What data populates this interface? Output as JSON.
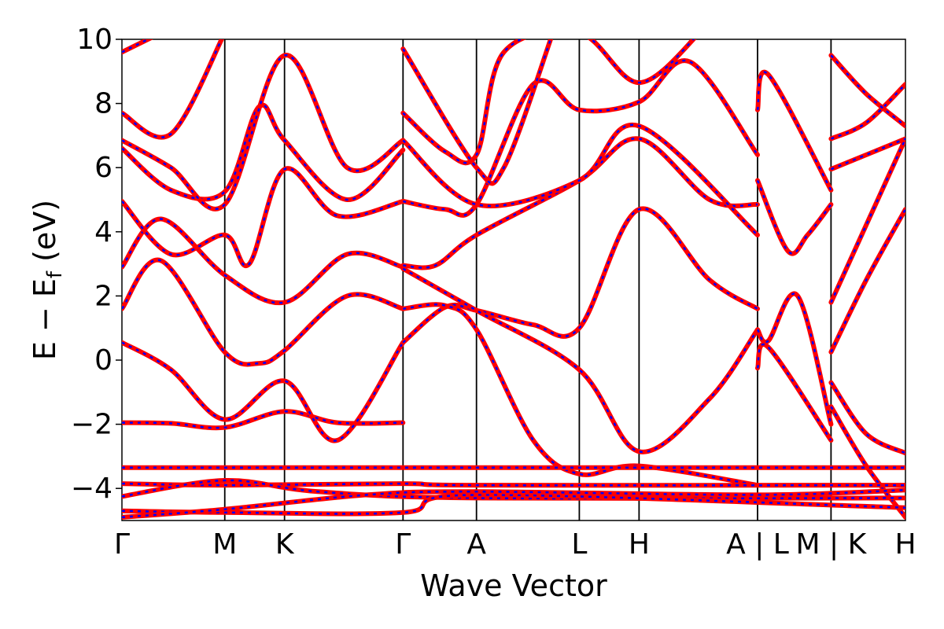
{
  "chart_data": {
    "type": "line",
    "title": "",
    "xlabel": "Wave Vector",
    "ylabel_main": "E − E",
    "ylabel_sub": "f",
    "ylabel_unit": " (eV)",
    "ylim": [
      -5,
      10
    ],
    "yticks": [
      {
        "value": -4,
        "label": "−4"
      },
      {
        "value": -2,
        "label": "−2"
      },
      {
        "value": 0,
        "label": "0"
      },
      {
        "value": 2,
        "label": "2"
      },
      {
        "value": 4,
        "label": "4"
      },
      {
        "value": 6,
        "label": "6"
      },
      {
        "value": 8,
        "label": "8"
      },
      {
        "value": 10,
        "label": "10"
      }
    ],
    "xlim": [
      0,
      8.0
    ],
    "kpoints": [
      {
        "label": "Γ",
        "x": 0.0
      },
      {
        "label": "M",
        "x": 1.05
      },
      {
        "label": "K",
        "x": 1.66
      },
      {
        "label": "Γ",
        "x": 2.87
      },
      {
        "label": "A",
        "x": 3.62
      },
      {
        "label": "L",
        "x": 4.67
      },
      {
        "label": "H",
        "x": 5.28
      },
      {
        "label": "A | L",
        "x": 6.49
      },
      {
        "label": "M | K",
        "x": 7.24
      },
      {
        "label": "H",
        "x": 8.0
      }
    ],
    "colors": {
      "line_a": "#ff0000",
      "line_b": "#0000ff",
      "kpath_line": "#000000"
    },
    "grid": false,
    "legend": "none",
    "series": [
      {
        "points": [
          [
            0,
            -1.95
          ],
          [
            0.5,
            -1.97
          ],
          [
            1.05,
            -2.1
          ],
          [
            1.66,
            -1.6
          ],
          [
            2.2,
            -1.95
          ],
          [
            2.87,
            -1.95
          ]
        ]
      },
      {
        "points": [
          [
            0,
            0.55
          ],
          [
            0.5,
            -0.3
          ],
          [
            1.05,
            -1.85
          ],
          [
            1.66,
            -0.65
          ],
          [
            2.2,
            -2.5
          ],
          [
            2.87,
            0.55
          ]
        ]
      },
      {
        "points": [
          [
            0,
            1.6
          ],
          [
            0.4,
            3.1
          ],
          [
            1.05,
            0.25
          ],
          [
            1.4,
            -0.1
          ],
          [
            1.66,
            0.3
          ],
          [
            2.3,
            2.0
          ],
          [
            2.87,
            1.6
          ]
        ]
      },
      {
        "points": [
          [
            0,
            2.9
          ],
          [
            0.4,
            4.4
          ],
          [
            1.05,
            2.65
          ],
          [
            1.66,
            1.8
          ],
          [
            2.3,
            3.3
          ],
          [
            2.87,
            2.9
          ]
        ]
      },
      {
        "points": [
          [
            0,
            4.95
          ],
          [
            0.5,
            3.3
          ],
          [
            1.05,
            3.9
          ],
          [
            1.3,
            3.0
          ],
          [
            1.66,
            5.95
          ],
          [
            2.2,
            4.5
          ],
          [
            2.87,
            4.95
          ]
        ]
      },
      {
        "points": [
          [
            0,
            6.6
          ],
          [
            0.5,
            5.3
          ],
          [
            1.05,
            5.25
          ],
          [
            1.4,
            7.9
          ],
          [
            1.66,
            6.85
          ],
          [
            2.3,
            5.0
          ],
          [
            2.87,
            6.55
          ]
        ]
      },
      {
        "points": [
          [
            0,
            6.85
          ],
          [
            0.5,
            6.0
          ],
          [
            1.05,
            4.85
          ],
          [
            1.66,
            9.5
          ],
          [
            2.3,
            6.0
          ],
          [
            2.87,
            6.85
          ]
        ]
      },
      {
        "points": [
          [
            0,
            7.7
          ],
          [
            0.5,
            7.05
          ],
          [
            1.05,
            10.2
          ]
        ]
      },
      {
        "points": [
          [
            0,
            9.6
          ],
          [
            0.4,
            10.2
          ]
        ]
      },
      {
        "points": [
          [
            2.87,
            0.55
          ],
          [
            3.3,
            1.65
          ],
          [
            3.62,
            1.55
          ],
          [
            4.2,
            1.1
          ],
          [
            4.67,
            1.0
          ],
          [
            5.28,
            4.7
          ],
          [
            6.0,
            2.5
          ],
          [
            6.49,
            1.6
          ]
        ]
      },
      {
        "points": [
          [
            2.87,
            1.6
          ],
          [
            3.3,
            1.7
          ],
          [
            3.62,
            0.95
          ],
          [
            4.2,
            -2.5
          ],
          [
            4.67,
            -3.55
          ],
          [
            5.28,
            -3.3
          ],
          [
            6.49,
            -3.9
          ]
        ]
      },
      {
        "points": [
          [
            2.87,
            2.95
          ],
          [
            3.2,
            2.95
          ],
          [
            3.62,
            3.9
          ],
          [
            4.67,
            5.6
          ],
          [
            5.28,
            6.9
          ],
          [
            6.0,
            5.0
          ],
          [
            6.49,
            4.85
          ]
        ]
      },
      {
        "points": [
          [
            2.87,
            2.85
          ],
          [
            3.62,
            1.55
          ],
          [
            4.67,
            -0.3
          ],
          [
            5.28,
            -2.85
          ],
          [
            6.0,
            -1.2
          ],
          [
            6.49,
            0.95
          ]
        ]
      },
      {
        "points": [
          [
            2.87,
            4.95
          ],
          [
            3.3,
            4.7
          ],
          [
            3.62,
            4.85
          ],
          [
            4.2,
            8.6
          ],
          [
            4.67,
            7.8
          ],
          [
            5.28,
            8.05
          ],
          [
            5.8,
            9.3
          ],
          [
            6.49,
            6.4
          ]
        ]
      },
      {
        "points": [
          [
            2.87,
            6.85
          ],
          [
            3.62,
            4.85
          ],
          [
            4.67,
            5.6
          ],
          [
            5.28,
            7.3
          ],
          [
            6.49,
            3.9
          ]
        ]
      },
      {
        "points": [
          [
            2.87,
            7.7
          ],
          [
            3.3,
            6.5
          ],
          [
            3.62,
            6.4
          ],
          [
            3.9,
            9.6
          ],
          [
            4.67,
            10.2
          ],
          [
            5.28,
            8.65
          ],
          [
            5.9,
            10.2
          ]
        ]
      },
      {
        "points": [
          [
            2.87,
            9.7
          ],
          [
            3.62,
            6.0
          ],
          [
            3.9,
            6.0
          ],
          [
            4.4,
            10.2
          ]
        ]
      },
      {
        "points": [
          [
            6.49,
            0.95
          ],
          [
            6.6,
            0.6
          ],
          [
            6.9,
            2.0
          ],
          [
            7.24,
            -2.0
          ]
        ]
      },
      {
        "points": [
          [
            6.49,
            -0.25
          ],
          [
            6.6,
            0.4
          ],
          [
            7.24,
            -2.5
          ]
        ]
      },
      {
        "points": [
          [
            6.49,
            5.6
          ],
          [
            6.8,
            3.4
          ],
          [
            7.0,
            3.9
          ],
          [
            7.24,
            4.85
          ]
        ]
      },
      {
        "points": [
          [
            6.49,
            7.8
          ],
          [
            6.6,
            8.9
          ],
          [
            7.24,
            5.3
          ]
        ]
      },
      {
        "points": [
          [
            7.24,
            0.25
          ],
          [
            7.6,
            2.5
          ],
          [
            8.0,
            4.7
          ]
        ]
      },
      {
        "points": [
          [
            7.24,
            1.8
          ],
          [
            8.0,
            6.9
          ]
        ]
      },
      {
        "points": [
          [
            7.24,
            5.95
          ],
          [
            8.0,
            6.9
          ]
        ]
      },
      {
        "points": [
          [
            7.24,
            6.9
          ],
          [
            7.6,
            7.4
          ],
          [
            8.0,
            8.6
          ]
        ]
      },
      {
        "points": [
          [
            7.24,
            9.5
          ],
          [
            7.6,
            8.3
          ],
          [
            8.0,
            7.3
          ]
        ]
      },
      {
        "points": [
          [
            7.24,
            -0.7
          ],
          [
            7.6,
            -2.3
          ],
          [
            8.0,
            -2.9
          ]
        ]
      },
      {
        "points": [
          [
            7.24,
            -1.45
          ],
          [
            7.6,
            -3.3
          ],
          [
            8.0,
            -4.9
          ]
        ]
      },
      {
        "points": [
          [
            0,
            -3.35
          ],
          [
            8.0,
            -3.35
          ]
        ]
      },
      {
        "points": [
          [
            0,
            -3.85
          ],
          [
            1.05,
            -3.9
          ],
          [
            2.87,
            -3.85
          ],
          [
            3.62,
            -3.9
          ],
          [
            8.0,
            -3.9
          ]
        ]
      },
      {
        "points": [
          [
            0,
            -4.25
          ],
          [
            1.05,
            -3.75
          ],
          [
            2.0,
            -4.1
          ],
          [
            3.62,
            -4.3
          ],
          [
            8.0,
            -4.3
          ]
        ]
      },
      {
        "points": [
          [
            0,
            -4.7
          ],
          [
            1.05,
            -4.75
          ],
          [
            2.87,
            -4.75
          ],
          [
            3.62,
            -4.2
          ],
          [
            8.0,
            -4.6
          ]
        ]
      },
      {
        "points": [
          [
            0,
            -4.9
          ],
          [
            1.05,
            -4.65
          ],
          [
            2.5,
            -4.2
          ],
          [
            3.62,
            -4.1
          ],
          [
            6.49,
            -4.2
          ],
          [
            8.0,
            -4.05
          ]
        ]
      }
    ]
  }
}
